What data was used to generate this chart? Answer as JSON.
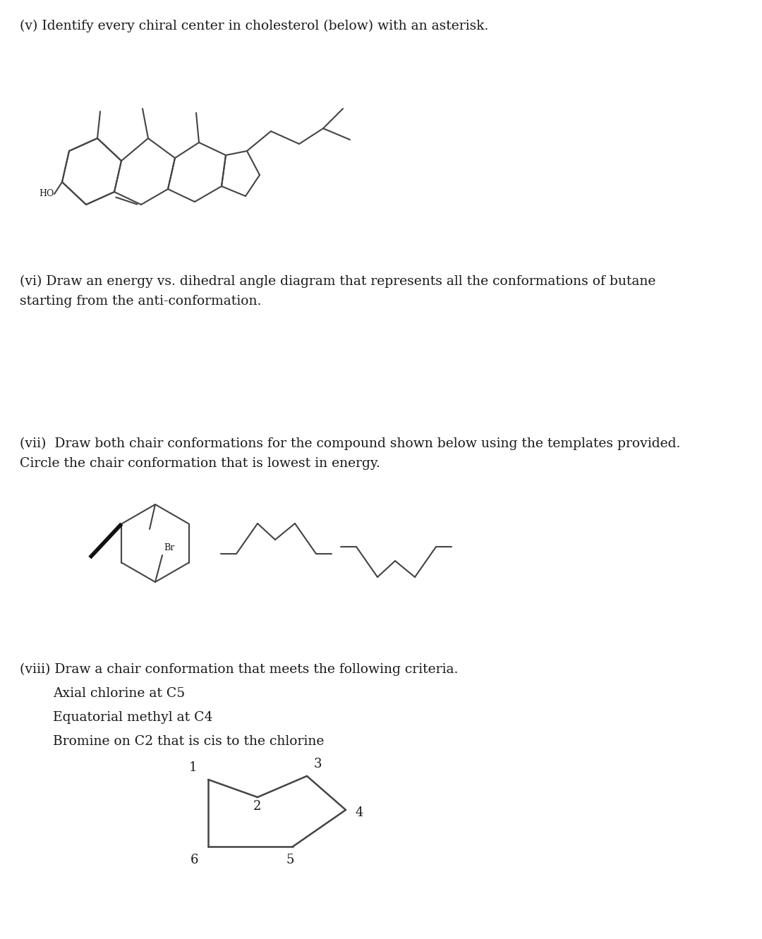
{
  "bg_color": "#ffffff",
  "text_color": "#1a1a1a",
  "line_color": "#444444",
  "sections": {
    "v_title": "(v) Identify every chiral center in cholesterol (below) with an asterisk.",
    "vi_title_line1": "(vi) Draw an energy vs. dihedral angle diagram that represents all the conformations of butane",
    "vi_title_line2": "starting from the anti-conformation.",
    "vii_title_line1": "(vii)  Draw both chair conformations for the compound shown below using the templates provided.",
    "vii_title_line2": "Circle the chair conformation that is lowest in energy.",
    "viii_title": "(viii) Draw a chair conformation that meets the following criteria.",
    "viii_bullet1": "Axial chlorine at C5",
    "viii_bullet2": "Equatorial methyl at C4",
    "viii_bullet3": "Bromine on C2 that is cis to the chlorine"
  },
  "font_size_body": 13.5,
  "ho_label": "HO",
  "br_label": "Br"
}
